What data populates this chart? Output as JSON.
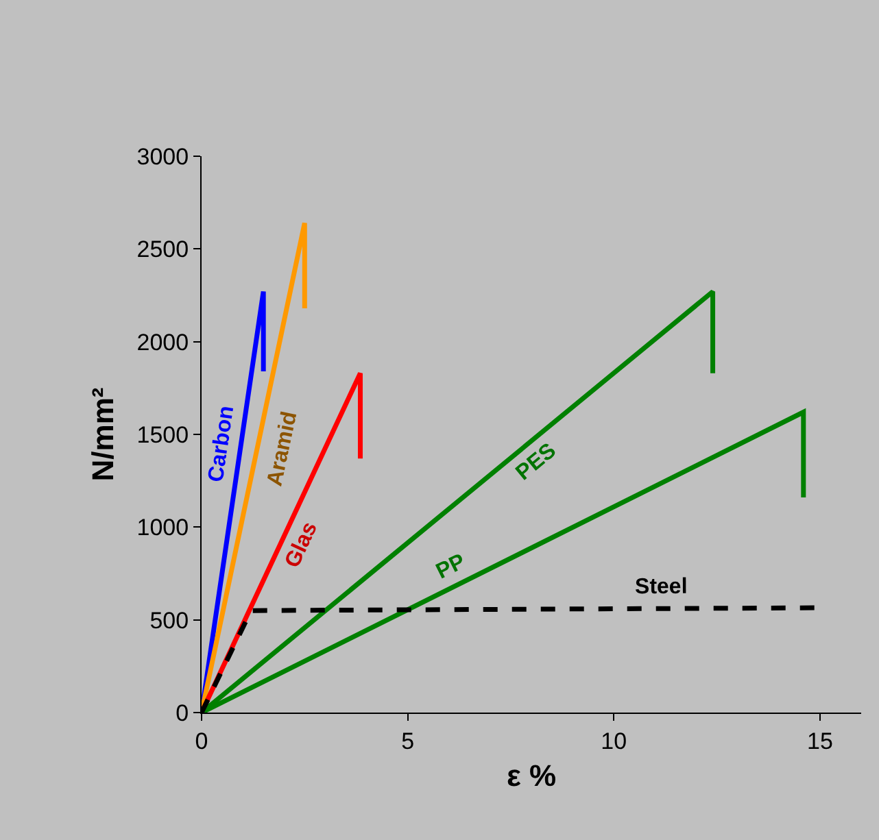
{
  "chart_data": {
    "type": "line",
    "xlabel": "ε %",
    "ylabel": "N/mm²",
    "xlim": [
      0,
      16
    ],
    "ylim": [
      0,
      3000
    ],
    "xticks": [
      0,
      5,
      10,
      15
    ],
    "yticks": [
      0,
      500,
      1000,
      1500,
      2000,
      2500,
      3000
    ],
    "grid": false,
    "legend": false,
    "marker": "none",
    "series": [
      {
        "name": "Carbon",
        "color": "#0000ff",
        "x": [
          0,
          1.5,
          1.5
        ],
        "values": [
          0,
          2270,
          1840
        ]
      },
      {
        "name": "Aramid",
        "color": "#ff9900",
        "x": [
          0,
          2.5,
          2.5
        ],
        "values": [
          0,
          2640,
          2180
        ]
      },
      {
        "name": "Glas",
        "color": "#ff0000",
        "x": [
          0,
          3.85,
          3.85
        ],
        "values": [
          0,
          1830,
          1370
        ]
      },
      {
        "name": "PES",
        "color": "#008000",
        "x": [
          0,
          12.4,
          12.4
        ],
        "values": [
          0,
          2270,
          1830
        ]
      },
      {
        "name": "PP",
        "color": "#008000",
        "x": [
          0,
          14.6,
          14.6
        ],
        "values": [
          0,
          1620,
          1160
        ]
      },
      {
        "name": "Steel",
        "color": "#000000",
        "line_style": "dashed",
        "x": [
          0,
          1.2,
          15
        ],
        "values": [
          0,
          550,
          565
        ]
      }
    ]
  }
}
